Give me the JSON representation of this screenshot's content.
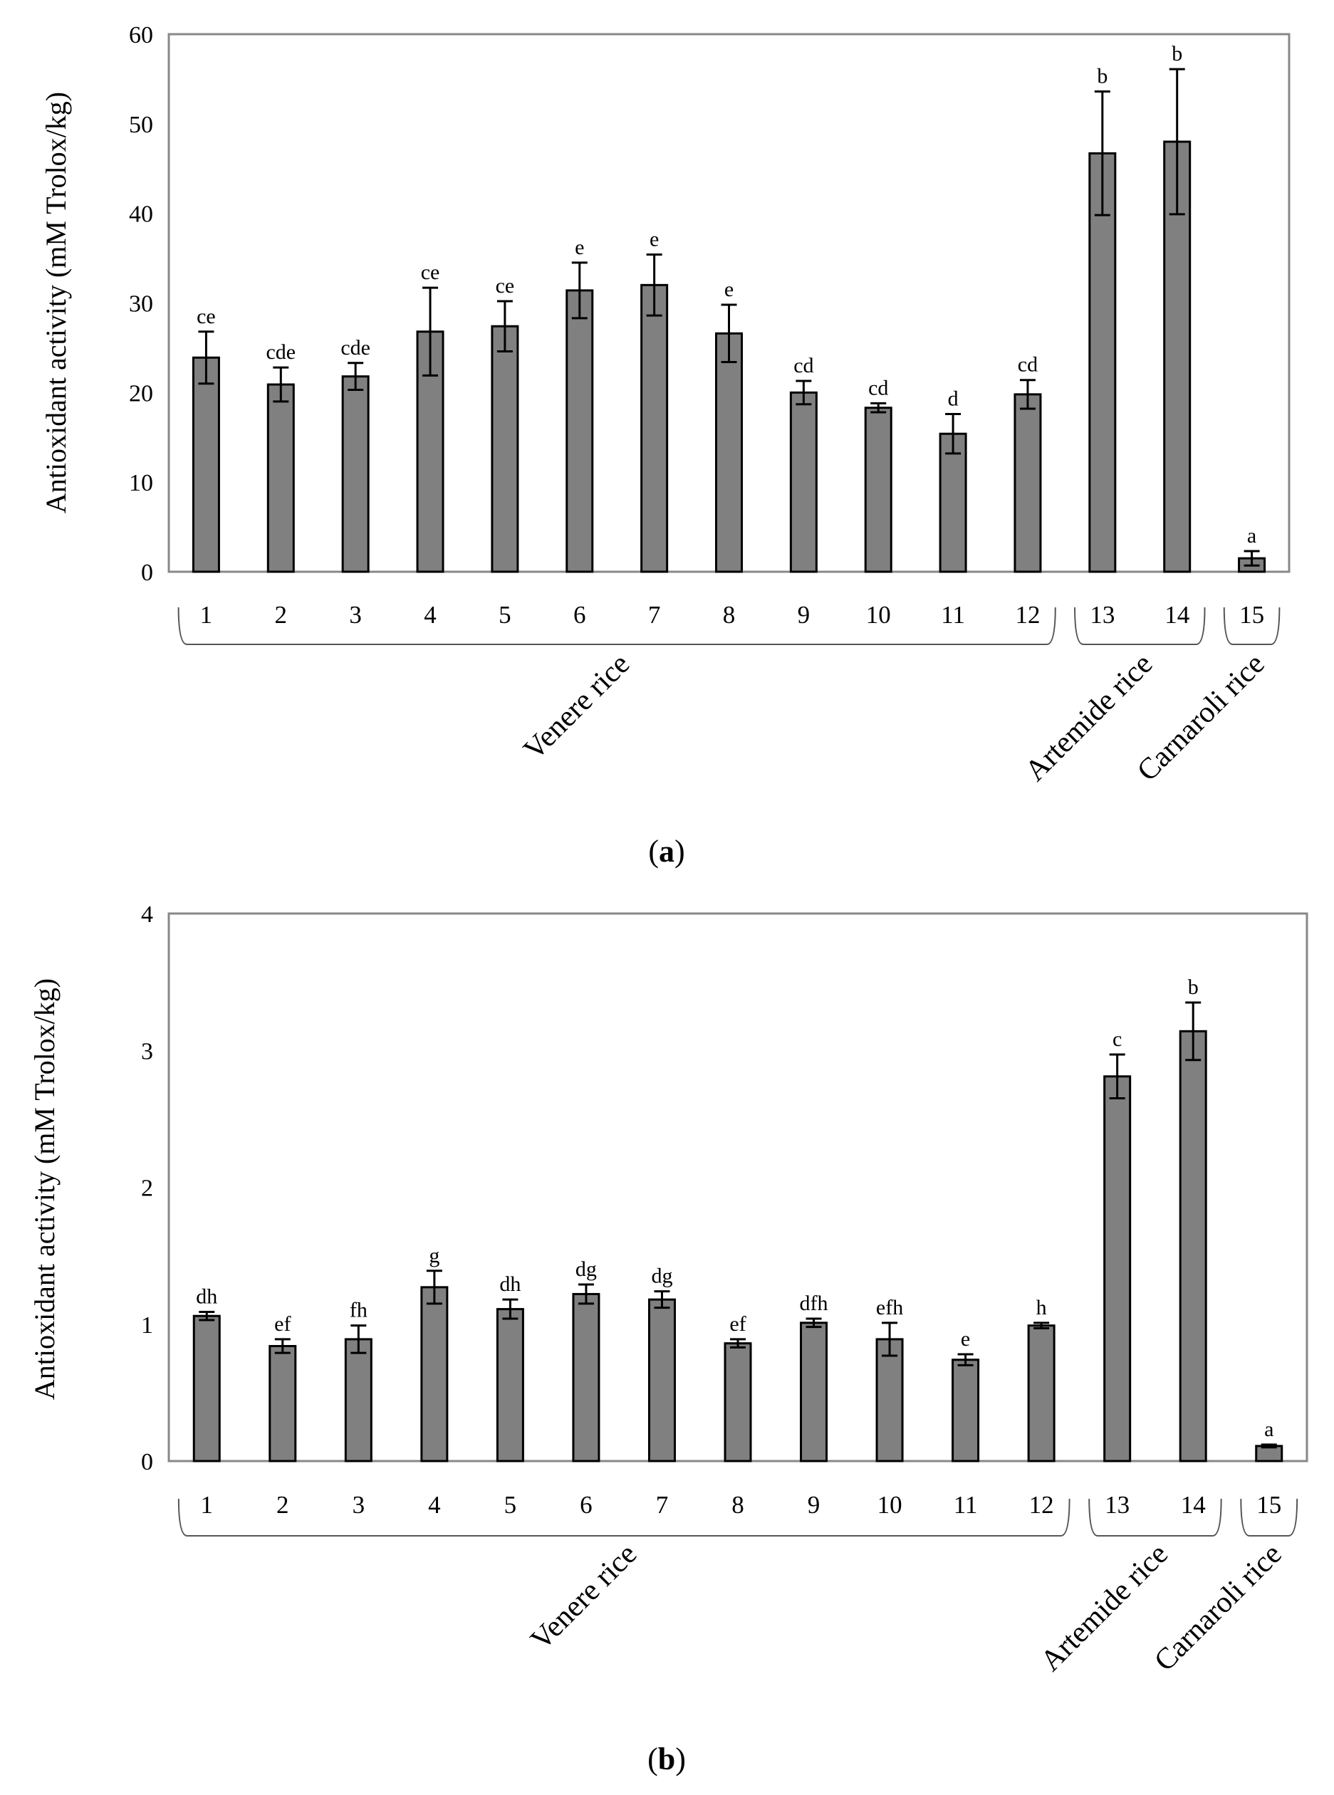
{
  "chart_data": [
    {
      "type": "bar",
      "panel_label": "a",
      "ylabel": "Antioxidant activity (mM Trolox/kg)",
      "ylim": [
        0,
        60
      ],
      "yticks": [
        "0",
        "10",
        "20",
        "30",
        "40",
        "50",
        "60"
      ],
      "categories": [
        "1",
        "2",
        "3",
        "4",
        "5",
        "6",
        "7",
        "8",
        "9",
        "10",
        "11",
        "12",
        "13",
        "14",
        "15"
      ],
      "values": [
        23.9,
        20.9,
        21.8,
        26.8,
        27.4,
        31.4,
        32.0,
        26.6,
        20.0,
        18.3,
        15.4,
        19.8,
        46.7,
        48.0,
        1.5
      ],
      "errors": [
        2.9,
        1.9,
        1.5,
        4.9,
        2.8,
        3.1,
        3.4,
        3.2,
        1.3,
        0.5,
        2.2,
        1.6,
        6.9,
        8.1,
        0.8
      ],
      "significance": [
        "ce",
        "cde",
        "cde",
        "ce",
        "ce",
        "e",
        "e",
        "e",
        "cd",
        "cd",
        "d",
        "cd",
        "b",
        "b",
        "a"
      ],
      "groups": [
        {
          "label": "Venere rice",
          "from": 1,
          "to": 12
        },
        {
          "label": "Artemide rice",
          "from": 13,
          "to": 14
        },
        {
          "label": "Carnaroli rice",
          "from": 15,
          "to": 15
        }
      ],
      "bar_color": "#808080",
      "grid": false
    },
    {
      "type": "bar",
      "panel_label": "b",
      "ylabel": "Antioxidant activity (mM Trolox/kg)",
      "ylim": [
        0,
        4
      ],
      "yticks": [
        "0",
        "1",
        "2",
        "3",
        "4"
      ],
      "categories": [
        "1",
        "2",
        "3",
        "4",
        "5",
        "6",
        "7",
        "8",
        "9",
        "10",
        "11",
        "12",
        "13",
        "14",
        "15"
      ],
      "values": [
        1.06,
        0.84,
        0.89,
        1.27,
        1.11,
        1.22,
        1.18,
        0.86,
        1.01,
        0.89,
        0.74,
        0.99,
        2.81,
        3.14,
        0.11
      ],
      "errors": [
        0.03,
        0.05,
        0.1,
        0.12,
        0.07,
        0.07,
        0.06,
        0.03,
        0.03,
        0.12,
        0.04,
        0.02,
        0.16,
        0.21,
        0.01
      ],
      "significance": [
        "dh",
        "ef",
        "fh",
        "g",
        "dh",
        "dg",
        "dg",
        "ef",
        "dfh",
        "efh",
        "e",
        "h",
        "c",
        "b",
        "a"
      ],
      "groups": [
        {
          "label": "Venere rice",
          "from": 1,
          "to": 12
        },
        {
          "label": "Artemide rice",
          "from": 13,
          "to": 14
        },
        {
          "label": "Carnaroli rice",
          "from": 15,
          "to": 15
        }
      ],
      "bar_color": "#808080",
      "grid": false
    }
  ]
}
